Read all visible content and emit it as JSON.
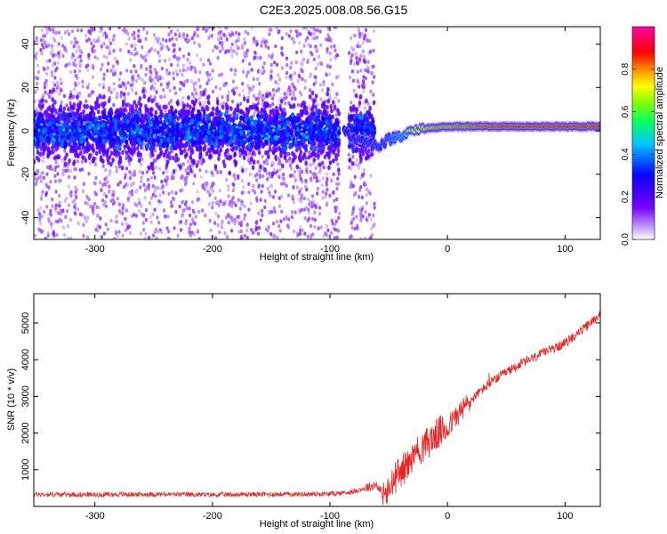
{
  "title": "C2E3.2025.008.08.56.G15",
  "chart_data": [
    {
      "type": "heatmap",
      "xlabel": "Height of straight line (km)",
      "ylabel": "Frequency (Hz)",
      "xlim": [
        -352,
        130
      ],
      "ylim": [
        -50,
        48
      ],
      "x_ticks": [
        -300,
        -200,
        -100,
        0,
        100
      ],
      "y_ticks": [
        -40,
        -20,
        0,
        20,
        40
      ],
      "colorbar": {
        "label": "Normalized spectral amplitude",
        "range": [
          0,
          1
        ],
        "ticks": [
          "0.0",
          "0.2",
          "0.4",
          "0.6",
          "0.8"
        ],
        "colormap": "rainbow"
      },
      "features": {
        "noise_region_x": [
          -352,
          -62
        ],
        "gap_x": [
          -92,
          -84
        ],
        "ridge_points": [
          {
            "x": -88,
            "y": 1,
            "amp": 0.45
          },
          {
            "x": -82,
            "y": -3,
            "amp": 0.5
          },
          {
            "x": -60,
            "y": -7,
            "amp": 0.55
          },
          {
            "x": -50,
            "y": -4,
            "amp": 0.6
          },
          {
            "x": -40,
            "y": -2,
            "amp": 0.7
          },
          {
            "x": -30,
            "y": 0,
            "amp": 0.8
          },
          {
            "x": -20,
            "y": 1,
            "amp": 0.85
          },
          {
            "x": -10,
            "y": 1.5,
            "amp": 0.9
          },
          {
            "x": 0,
            "y": 2,
            "amp": 0.9
          },
          {
            "x": 20,
            "y": 2,
            "amp": 0.95
          },
          {
            "x": 50,
            "y": 2,
            "amp": 1.0
          },
          {
            "x": 80,
            "y": 2,
            "amp": 1.0
          },
          {
            "x": 100,
            "y": 2,
            "amp": 1.0
          },
          {
            "x": 130,
            "y": 2,
            "amp": 1.0
          }
        ]
      }
    },
    {
      "type": "line",
      "xlabel": "Height of straight line (km)",
      "ylabel": "SNR (10 * v/v)",
      "xlim": [
        -352,
        130
      ],
      "ylim": [
        0,
        5800
      ],
      "x_ticks": [
        -300,
        -200,
        -100,
        0,
        100
      ],
      "y_ticks": [
        1000,
        2000,
        3000,
        4000,
        5000
      ],
      "series": [
        {
          "color": "#ee2222",
          "x": [
            -352,
            -300,
            -250,
            -200,
            -150,
            -100,
            -80,
            -65,
            -60,
            -55,
            -50,
            -45,
            -40,
            -35,
            -30,
            -25,
            -20,
            -15,
            -10,
            -5,
            0,
            10,
            20,
            30,
            40,
            50,
            60,
            70,
            80,
            90,
            100,
            110,
            120,
            130
          ],
          "values": [
            330,
            320,
            330,
            320,
            330,
            340,
            400,
            550,
            600,
            300,
            380,
            750,
            950,
            1100,
            1300,
            1500,
            1650,
            1800,
            1950,
            2050,
            2150,
            2550,
            2900,
            3200,
            3450,
            3650,
            3850,
            4000,
            4150,
            4300,
            4450,
            4700,
            4950,
            5250
          ]
        }
      ]
    }
  ]
}
